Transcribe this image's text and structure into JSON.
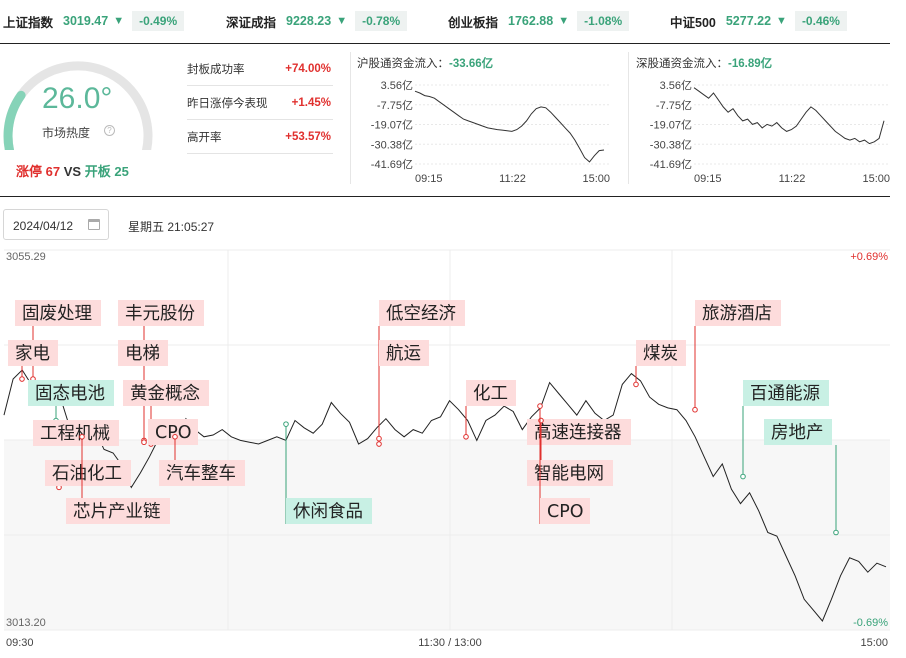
{
  "indices": [
    {
      "name": "上证指数",
      "value": "3019.47",
      "arrow": "▼",
      "change": "-0.49%"
    },
    {
      "name": "深证成指",
      "value": "9228.23",
      "arrow": "▼",
      "change": "-0.78%"
    },
    {
      "name": "创业板指",
      "value": "1762.88",
      "arrow": "▼",
      "change": "-1.08%"
    },
    {
      "name": "中证500",
      "value": "5277.22",
      "arrow": "▼",
      "change": "-0.46%"
    }
  ],
  "heat": {
    "temperature": "26.0°",
    "label": "市场热度",
    "level": 0.26,
    "limit_up_label": "涨停",
    "limit_up_count": "67",
    "vs": "VS",
    "broken_label": "开板",
    "broken_count": "25"
  },
  "stats": [
    {
      "label": "封板成功率",
      "value": "+74.00%"
    },
    {
      "label": "昨日涨停今表现",
      "value": "+1.45%"
    },
    {
      "label": "高开率",
      "value": "+53.57%"
    }
  ],
  "flows": [
    {
      "title": "沪股通资金流入：",
      "amount": "-33.66亿",
      "y_ticks": [
        "3.56亿",
        "-7.75亿",
        "-19.07亿",
        "-30.38亿",
        "-41.69亿"
      ],
      "x_ticks": [
        "09:15",
        "11:22",
        "15:00"
      ],
      "y_range": [
        -41.69,
        3.56
      ],
      "values": [
        0,
        -1,
        -2.5,
        -3,
        -4,
        -6,
        -8,
        -10,
        -12,
        -14,
        -16,
        -17,
        -18,
        -19,
        -20,
        -21,
        -21.5,
        -22,
        -22.3,
        -22.6,
        -23,
        -22,
        -20,
        -17,
        -13,
        -10,
        -9,
        -9.5,
        -12,
        -15,
        -18,
        -21,
        -24,
        -28,
        -33,
        -38,
        -40.5,
        -37,
        -34,
        -33.66
      ]
    },
    {
      "title": "深股通资金流入：",
      "amount": "-16.89亿",
      "y_ticks": [
        "3.56亿",
        "-7.75亿",
        "-19.07亿",
        "-30.38亿",
        "-41.69亿"
      ],
      "x_ticks": [
        "09:15",
        "11:22",
        "15:00"
      ],
      "y_range": [
        -41.69,
        3.56
      ],
      "values": [
        2,
        0,
        -2,
        -4,
        -1,
        -5,
        -9,
        -12,
        -10,
        -14,
        -17,
        -16,
        -19,
        -18,
        -21,
        -19,
        -20,
        -18,
        -21,
        -23,
        -22,
        -20,
        -16,
        -12,
        -9,
        -11,
        -14,
        -17,
        -20,
        -23,
        -25,
        -27,
        -28,
        -27,
        -29,
        -28,
        -30,
        -29,
        -27,
        -16.89
      ]
    }
  ],
  "date": {
    "value": "2024/04/12",
    "weekday_time": "星期五 21:05:27"
  },
  "main_chart": {
    "type": "line",
    "y_max_label": "3055.29",
    "y_min_label": "3013.20",
    "pct_max_label": "+0.69%",
    "pct_min_label": "-0.69%",
    "x_ticks": [
      "09:30",
      "11:30 / 13:00",
      "15:00"
    ],
    "y_range": [
      3013.2,
      3055.29
    ],
    "values": [
      3037.0,
      3041.0,
      3042.0,
      3040.4,
      3039.4,
      3038.2,
      3039.6,
      3036.4,
      3035.4,
      3034.2,
      3035.4,
      3033.2,
      3032.8,
      3031.4,
      3029.0,
      3030.6,
      3032.4,
      3034.4,
      3035.2,
      3034.6,
      3036.6,
      3035.4,
      3034.6,
      3034.8,
      3035.4,
      3034.6,
      3034.2,
      3034.0,
      3033.8,
      3034.2,
      3034.6,
      3034.2,
      3036.4,
      3035.6,
      3035.0,
      3036.0,
      3038.4,
      3037.2,
      3036.2,
      3033.8,
      3034.4,
      3035.6,
      3036.6,
      3035.4,
      3034.6,
      3035.4,
      3035.0,
      3036.4,
      3036.8,
      3038.6,
      3037.6,
      3036.4,
      3034.2,
      3036.4,
      3037.0,
      3038.0,
      3037.4,
      3035.4,
      3036.8,
      3037.8,
      3040.6,
      3039.4,
      3038.2,
      3037.0,
      3038.6,
      3037.2,
      3036.4,
      3037.0,
      3040.4,
      3041.6,
      3040.8,
      3039.0,
      3038.2,
      3037.8,
      3037.6,
      3036.4,
      3034.6,
      3032.4,
      3030.2,
      3031.6,
      3028.8,
      3027.2,
      3028.4,
      3026.4,
      3024.0,
      3023.6,
      3021.4,
      3019.2,
      3016.6,
      3015.4,
      3014.2,
      3016.6,
      3019.2,
      3021.2,
      3020.8,
      3019.6,
      3020.6,
      3020.2
    ]
  },
  "tags": [
    {
      "text": "固废处理",
      "kind": "up"
    },
    {
      "text": "家电",
      "kind": "up"
    },
    {
      "text": "固态电池",
      "kind": "down"
    },
    {
      "text": "工程机械",
      "kind": "up"
    },
    {
      "text": "石油化工",
      "kind": "up"
    },
    {
      "text": "芯片产业链",
      "kind": "up"
    },
    {
      "text": "丰元股份",
      "kind": "up"
    },
    {
      "text": "电梯",
      "kind": "up"
    },
    {
      "text": "黄金概念",
      "kind": "up"
    },
    {
      "text": "CPO",
      "kind": "up"
    },
    {
      "text": "汽车整车",
      "kind": "up"
    },
    {
      "text": "休闲食品",
      "kind": "down"
    },
    {
      "text": "低空经济",
      "kind": "up"
    },
    {
      "text": "航运",
      "kind": "up"
    },
    {
      "text": "化工",
      "kind": "up"
    },
    {
      "text": "高速连接器",
      "kind": "up"
    },
    {
      "text": "智能电网",
      "kind": "up"
    },
    {
      "text": "CPO",
      "kind": "up"
    },
    {
      "text": "煤炭",
      "kind": "up"
    },
    {
      "text": "旅游酒店",
      "kind": "up"
    },
    {
      "text": "百通能源",
      "kind": "down"
    },
    {
      "text": "房地产",
      "kind": "down"
    }
  ],
  "colors": {
    "up": "#e0302e",
    "down": "#3aa37a",
    "up_bg": "#fddcdc",
    "down_bg": "#c8f0e4"
  }
}
